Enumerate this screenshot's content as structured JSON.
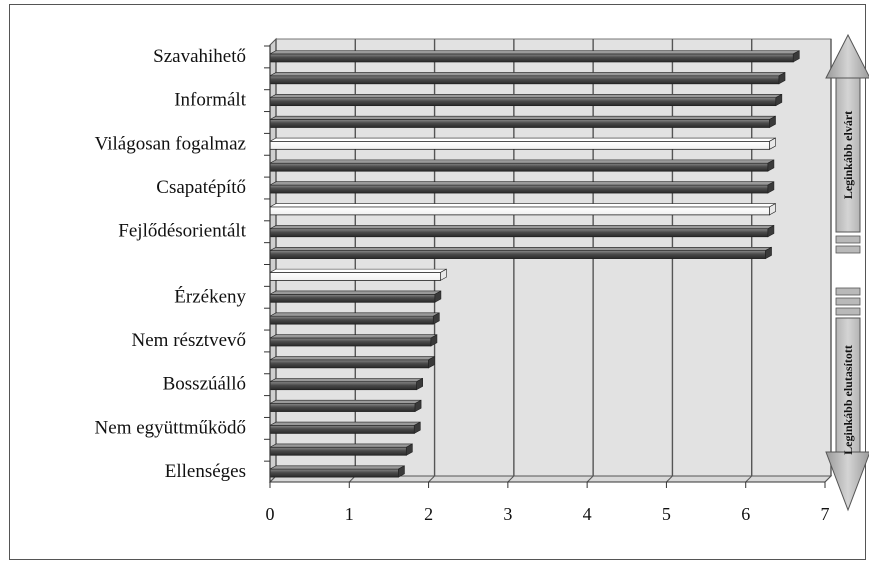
{
  "chart_data": {
    "type": "bar",
    "orientation": "horizontal",
    "categories": [
      "Szavahihető",
      "",
      "Informált",
      "",
      "Világosan fogalmaz",
      "",
      "Csapatépítő",
      "",
      "Fejlődésorientált",
      "",
      "",
      "Érzékeny",
      "",
      "Nem résztvevő",
      "",
      "Bosszúálló",
      "",
      "Nem együttműködő",
      "",
      "Ellenséges"
    ],
    "bars": [
      {
        "value": 6.6,
        "highlight": false
      },
      {
        "value": 6.42,
        "highlight": false
      },
      {
        "value": 6.38,
        "highlight": false
      },
      {
        "value": 6.3,
        "highlight": false
      },
      {
        "value": 6.3,
        "highlight": true
      },
      {
        "value": 6.28,
        "highlight": false
      },
      {
        "value": 6.28,
        "highlight": false
      },
      {
        "value": 6.3,
        "highlight": true
      },
      {
        "value": 6.28,
        "highlight": false
      },
      {
        "value": 6.25,
        "highlight": false
      },
      {
        "value": 2.15,
        "highlight": true
      },
      {
        "value": 2.08,
        "highlight": false
      },
      {
        "value": 2.06,
        "highlight": false
      },
      {
        "value": 2.03,
        "highlight": false
      },
      {
        "value": 2.0,
        "highlight": false
      },
      {
        "value": 1.85,
        "highlight": false
      },
      {
        "value": 1.83,
        "highlight": false
      },
      {
        "value": 1.82,
        "highlight": false
      },
      {
        "value": 1.72,
        "highlight": false
      },
      {
        "value": 1.62,
        "highlight": false
      }
    ],
    "xticks": [
      0,
      1,
      2,
      3,
      4,
      5,
      6,
      7
    ],
    "xlim": [
      0,
      7
    ],
    "grid": true,
    "colors": {
      "bar": "#555555",
      "bar_highlight": "#ffffff",
      "plot_bg": "#e2e2e2",
      "arrow": "#b9b9b9"
    },
    "side_labels": {
      "top": "Leginkább elvárt",
      "bottom": "Leginkább elutasított"
    }
  }
}
